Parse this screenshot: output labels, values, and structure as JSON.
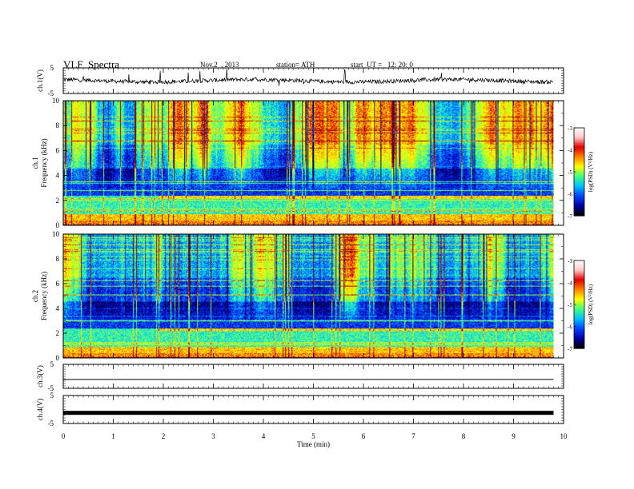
{
  "header": {
    "title": "VLF  Spectra",
    "date": "Nov.2  , 2013",
    "station": "station= ATH",
    "start": "start  UT =   12: 20: 0"
  },
  "chart_data": [
    {
      "id": "ch1-waveform",
      "type": "line",
      "ylabel": "ch.1(V)",
      "ylim": [
        -5,
        5
      ],
      "yticks": [
        "5",
        "-5"
      ],
      "xlim": [
        0,
        10
      ],
      "x_range_data": [
        0,
        9.8
      ],
      "baseline": 0,
      "amplitude_peak": 3.5,
      "line_color": "#000000"
    },
    {
      "id": "ch1-spectrogram",
      "type": "heatmap",
      "ylabel_line1": "ch.1",
      "ylabel_line2": "Frequency  (kHz)",
      "ylim": [
        0,
        10
      ],
      "yticks": [
        "0",
        "2",
        "4",
        "6",
        "8",
        "10"
      ],
      "xlim": [
        0,
        10
      ],
      "x_range_data": [
        0,
        9.8
      ],
      "colorbar": {
        "label": "log(PSD) (V²/Hz)",
        "range": [
          -7,
          -3
        ],
        "ticks": [
          "-3",
          "-4",
          "-5",
          "-6",
          "-7"
        ],
        "colors": [
          "#000000",
          "#0000a0",
          "#0044ff",
          "#00c0ff",
          "#40ff80",
          "#ffff00",
          "#ff8000",
          "#e00000",
          "#ffc8c8",
          "#ffffff"
        ]
      },
      "step_feature_time_min": 1.9
    },
    {
      "id": "ch2-spectrogram",
      "type": "heatmap",
      "ylabel_line1": "ch.2",
      "ylabel_line2": "Frequency  (kHz)",
      "ylim": [
        0,
        10
      ],
      "yticks": [
        "0",
        "2",
        "4",
        "6",
        "8",
        "10"
      ],
      "xlim": [
        0,
        10
      ],
      "x_range_data": [
        0,
        9.8
      ],
      "colorbar": {
        "label": "log(PSD) (V²/Hz)",
        "range": [
          -7,
          -3
        ],
        "ticks": [
          "-3",
          "-4",
          "-5",
          "-6",
          "-7"
        ],
        "colors": [
          "#000000",
          "#0000a0",
          "#0044ff",
          "#00c0ff",
          "#40ff80",
          "#ffff00",
          "#ff8000",
          "#e00000",
          "#ffc8c8",
          "#ffffff"
        ]
      },
      "step_feature_time_min": [
        1.9,
        2.9,
        8.1
      ]
    },
    {
      "id": "ch3-waveform",
      "type": "line",
      "ylabel": "ch.3(V)",
      "ylim": [
        -5,
        5
      ],
      "yticks": [
        "5",
        "-5"
      ],
      "xlim": [
        0,
        10
      ],
      "x_range_data": [
        0,
        9.8
      ],
      "baseline": -1.3,
      "line_color": "#000000"
    },
    {
      "id": "ch4-waveform",
      "type": "line",
      "ylabel": "ch.4(V)",
      "ylim": [
        -5,
        5
      ],
      "yticks": [
        "5",
        "-5"
      ],
      "xlim": [
        0,
        10
      ],
      "x_range_data": [
        0,
        9.8
      ],
      "baseline": -1.2,
      "line_color": "#000000"
    }
  ],
  "x_axis": {
    "label": "Time  (min)",
    "ticks": [
      "0",
      "1",
      "2",
      "3",
      "4",
      "5",
      "6",
      "7",
      "8",
      "9",
      "10"
    ]
  }
}
